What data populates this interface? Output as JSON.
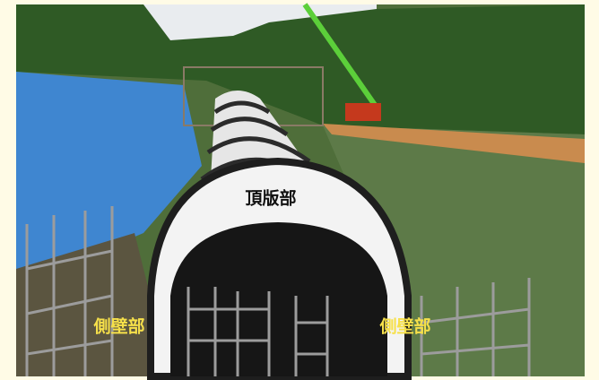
{
  "labels": [
    {
      "text": "頂版部"
    },
    {
      "text": "側壁部"
    },
    {
      "text": "側壁部"
    }
  ]
}
